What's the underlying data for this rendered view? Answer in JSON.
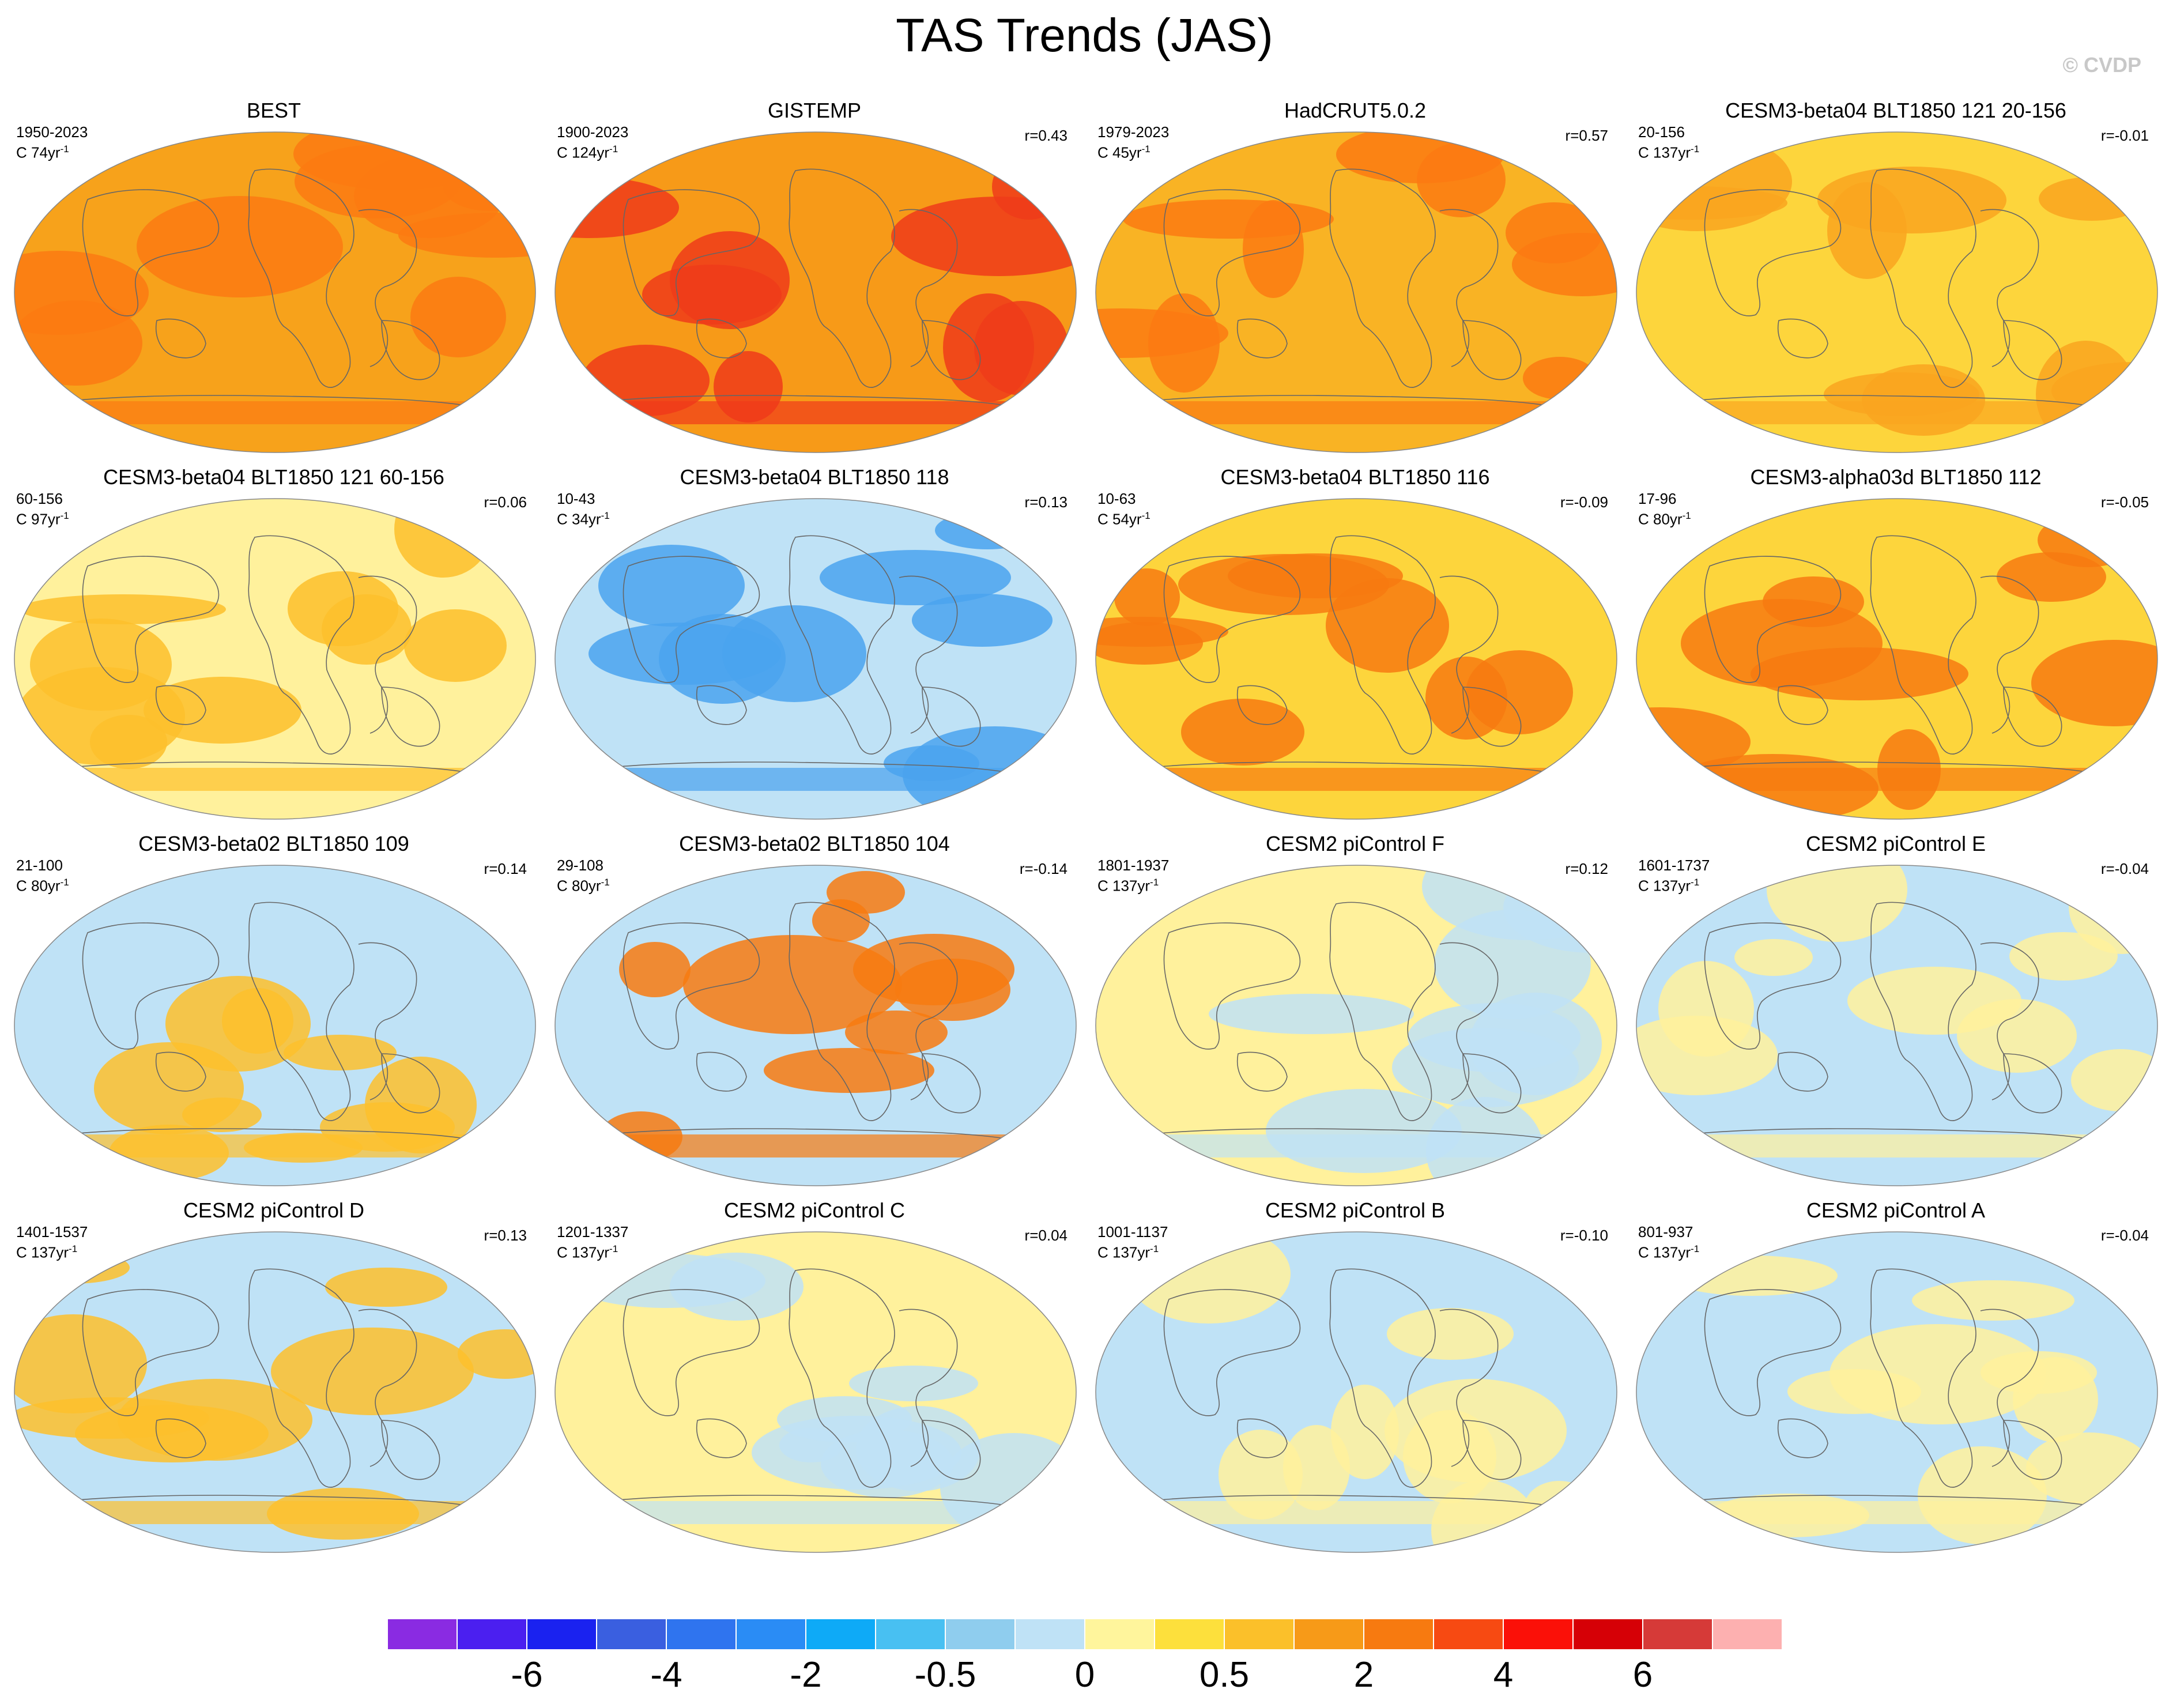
{
  "figure": {
    "title": "TAS Trends (JAS)",
    "watermark": "© CVDP"
  },
  "chart_data": {
    "type": "heatmap",
    "title": "TAS Trends (JAS)",
    "projection": "robinson",
    "panels": [
      {
        "title": "BEST",
        "period": "1950-2023",
        "years": "C 74yr",
        "r": "",
        "base": "#f7a21b",
        "accent": "#fb7a12"
      },
      {
        "title": "GISTEMP",
        "period": "1900-2023",
        "years": "C 124yr",
        "r": "r=0.43",
        "base": "#f79a18",
        "accent": "#ef3b1a"
      },
      {
        "title": "HadCRUT5.0.2",
        "period": "1979-2023",
        "years": "C 45yr",
        "r": "r=0.57",
        "base": "#f9b324",
        "accent": "#fb7a12"
      },
      {
        "title": "CESM3-beta04 BLT1850 121 20-156",
        "period": "20-156",
        "years": "C 137yr",
        "r": "r=-0.01",
        "base": "#fdd53c",
        "accent": "#f9a51f"
      },
      {
        "title": "CESM3-beta04 BLT1850 121 60-156",
        "period": "60-156",
        "years": "C 97yr",
        "r": "r=0.06",
        "base": "#fff19c",
        "accent": "#fdc02c"
      },
      {
        "title": "CESM3-beta04 BLT1850 118",
        "period": "10-43",
        "years": "C 34yr",
        "r": "r=0.13",
        "base": "#bfe2f6",
        "accent": "#4aa3ee"
      },
      {
        "title": "CESM3-beta04 BLT1850 116",
        "period": "10-63",
        "years": "C 54yr",
        "r": "r=-0.09",
        "base": "#fdd53c",
        "accent": "#f77a10"
      },
      {
        "title": "CESM3-alpha03d BLT1850 112",
        "period": "17-96",
        "years": "C 80yr",
        "r": "r=-0.05",
        "base": "#fdd53c",
        "accent": "#f77a10"
      },
      {
        "title": "CESM3-beta02 BLT1850 109",
        "period": "21-100",
        "years": "C 80yr",
        "r": "r=0.14",
        "base": "#bfe2f6",
        "accent": "#fdc02c"
      },
      {
        "title": "CESM3-beta02 BLT1850 104",
        "period": "29-108",
        "years": "C 80yr",
        "r": "r=-0.14",
        "base": "#bfe2f6",
        "accent": "#f77a10"
      },
      {
        "title": "CESM2 piControl F",
        "period": "1801-1937",
        "years": "C 137yr",
        "r": "r=0.12",
        "base": "#fff19c",
        "accent": "#bfe2f6"
      },
      {
        "title": "CESM2 piControl E",
        "period": "1601-1737",
        "years": "C 137yr",
        "r": "r=-0.04",
        "base": "#bfe2f6",
        "accent": "#fff19c"
      },
      {
        "title": "CESM2 piControl D",
        "period": "1401-1537",
        "years": "C 137yr",
        "r": "r=0.13",
        "base": "#bfe2f6",
        "accent": "#fdc02c"
      },
      {
        "title": "CESM2 piControl C",
        "period": "1201-1337",
        "years": "C 137yr",
        "r": "r=0.04",
        "base": "#fff19c",
        "accent": "#bfe2f6"
      },
      {
        "title": "CESM2 piControl B",
        "period": "1001-1137",
        "years": "C 137yr",
        "r": "r=-0.10",
        "base": "#bfe2f6",
        "accent": "#fff19c"
      },
      {
        "title": "CESM2 piControl A",
        "period": "801-937",
        "years": "C 137yr",
        "r": "r=-0.04",
        "base": "#bfe2f6",
        "accent": "#fff19c"
      }
    ],
    "colorbar": {
      "colors": [
        "#8a2be2",
        "#4b1ff0",
        "#1a22f0",
        "#3a5fe0",
        "#2f74ef",
        "#2a8cf5",
        "#0eaaf7",
        "#48c0f2",
        "#8fcdee",
        "#bfe2f6",
        "#fff59c",
        "#fde03c",
        "#fbc02a",
        "#f79a18",
        "#f77a10",
        "#f74a12",
        "#fb1008",
        "#d60006",
        "#d63a38",
        "#fdb0b0"
      ],
      "tick_labels": [
        "-6",
        "-4",
        "-2",
        "-0.5",
        "0",
        "0.5",
        "2",
        "4",
        "6"
      ],
      "tick_boundaries": [
        2,
        4,
        6,
        8,
        10,
        12,
        14,
        16,
        18
      ]
    }
  }
}
